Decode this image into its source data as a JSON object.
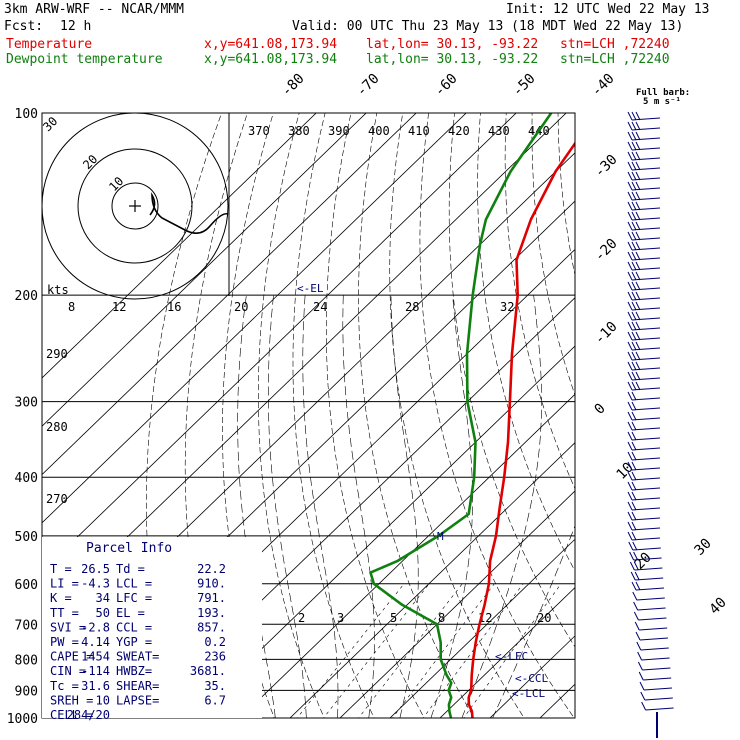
{
  "header": {
    "model": "3km ARW-WRF -- NCAR/MMM",
    "init": "Init: 12 UTC Wed 22 May 13",
    "fcst_label": "Fcst:",
    "fcst_value": "12 h",
    "valid": "Valid: 00 UTC Thu 23 May 13 (18 MDT Wed 22 May 13)",
    "temp_label": "Temperature",
    "dew_label": "Dewpoint temperature",
    "xy": "x,y=641.08,173.94",
    "latlon": "lat,lon= 30.13, -93.22",
    "stn": "stn=LCH ,72240"
  },
  "barb_legend": {
    "line1": "Full barb:",
    "line2": "5 m s⁻¹"
  },
  "parcel_info": {
    "title": "Parcel Info",
    "rows": [
      [
        "T  =",
        "26.5",
        "Td =",
        "22.2"
      ],
      [
        "LI =",
        "-4.3",
        "LCL =",
        "910."
      ],
      [
        "K  =",
        "34",
        "LFC =",
        "791."
      ],
      [
        "TT =",
        "50",
        "EL  =",
        "193."
      ],
      [
        "SVI =",
        "-2.8",
        "CCL =",
        "857."
      ],
      [
        "PW =",
        "4.14",
        "YGP =",
        "0.2"
      ],
      [
        "CAPE =",
        "1454",
        "SWEAT=",
        "236"
      ],
      [
        "CIN =",
        "-114",
        "HWBZ=",
        "3681."
      ],
      [
        "Tc =",
        "31.6",
        "SHEAR=",
        "35."
      ],
      [
        "SREH =",
        "10",
        "LAPSE=",
        "6.7"
      ],
      [
        "CELL =",
        "284/20",
        "",
        ""
      ]
    ]
  },
  "chart_data": {
    "type": "line",
    "subtype": "skew-T log-p sounding",
    "pressure_levels": [
      100,
      200,
      300,
      400,
      500,
      600,
      700,
      800,
      900,
      1000
    ],
    "pressure_tick_labels": [
      "100",
      "200",
      "300",
      "400",
      "500",
      "600",
      "700",
      "800",
      "900",
      "1000"
    ],
    "isotherm_labels": [
      "-80",
      "-70",
      "-60",
      "-50",
      "-40",
      "-30",
      "-20",
      "-10",
      "0",
      "10",
      "20",
      "30",
      "40"
    ],
    "theta_labels": [
      "370",
      "380",
      "390",
      "400",
      "410",
      "420",
      "430",
      "440"
    ],
    "theta_left_labels": [
      "290",
      "280",
      "270"
    ],
    "mixing_ratio_labels": [
      "2",
      "3",
      "5",
      "8",
      "12",
      "20"
    ],
    "hodograph": {
      "units_label": "kts",
      "speed_labels": [
        "8",
        "12",
        "16",
        "20",
        "24",
        "28",
        "32"
      ],
      "ring_labels": [
        "10",
        "20",
        "30"
      ]
    },
    "level_marks": [
      "EL",
      "LFC",
      "CCL",
      "LCL"
    ],
    "series": [
      {
        "name": "Temperature",
        "color": "#e00000",
        "points": [
          [
            1000,
            26.5
          ],
          [
            975,
            25.0
          ],
          [
            950,
            23.0
          ],
          [
            925,
            21.5
          ],
          [
            900,
            20.5
          ],
          [
            850,
            17.5
          ],
          [
            800,
            14.5
          ],
          [
            750,
            11.5
          ],
          [
            700,
            8.5
          ],
          [
            650,
            5.5
          ],
          [
            600,
            2.0
          ],
          [
            550,
            -2.5
          ],
          [
            500,
            -6.5
          ],
          [
            450,
            -11.5
          ],
          [
            400,
            -17.0
          ],
          [
            350,
            -23.5
          ],
          [
            300,
            -31.5
          ],
          [
            250,
            -41.0
          ],
          [
            200,
            -52.0
          ],
          [
            175,
            -59.5
          ],
          [
            150,
            -65.0
          ],
          [
            125,
            -70.0
          ],
          [
            100,
            -74.0
          ]
        ]
      },
      {
        "name": "Dewpoint temperature",
        "color": "#108010",
        "points": [
          [
            1000,
            22.2
          ],
          [
            975,
            20.5
          ],
          [
            950,
            19.0
          ],
          [
            925,
            18.0
          ],
          [
            900,
            16.0
          ],
          [
            875,
            15.0
          ],
          [
            850,
            12.5
          ],
          [
            800,
            8.0
          ],
          [
            750,
            4.5
          ],
          [
            700,
            0.0
          ],
          [
            650,
            -11.0
          ],
          [
            600,
            -21.0
          ],
          [
            575,
            -24.0
          ],
          [
            550,
            -21.0
          ],
          [
            500,
            -18.0
          ],
          [
            460,
            -16.5
          ],
          [
            400,
            -23.0
          ],
          [
            350,
            -30.0
          ],
          [
            300,
            -40.0
          ],
          [
            250,
            -50.0
          ],
          [
            200,
            -61.0
          ],
          [
            165,
            -70.0
          ],
          [
            150,
            -74.0
          ],
          [
            125,
            -79.0
          ],
          [
            100,
            -83.0
          ]
        ]
      }
    ],
    "wind_barbs_label": "wind barbs (right margin)"
  }
}
